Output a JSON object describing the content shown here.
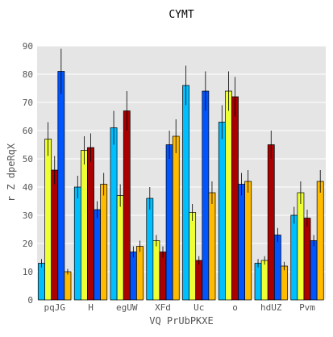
{
  "chart_data": {
    "type": "bar",
    "title": "CYMT",
    "xlabel": "VQ PrUbPKXE",
    "ylabel": "r Z dpeRqX",
    "categories": [
      "pqJG",
      "H",
      "egUW",
      "XFd",
      "Uc",
      "o",
      "hdUZ",
      "Pvm"
    ],
    "ylim": [
      0,
      90
    ],
    "yticks": [
      0,
      10,
      20,
      30,
      40,
      50,
      60,
      70,
      80,
      90
    ],
    "grid": true,
    "series": [
      {
        "color": "#00bfff",
        "values": [
          13,
          40,
          61,
          36,
          76,
          63,
          13,
          30
        ],
        "errors": [
          1.5,
          4,
          6,
          4,
          7,
          6,
          1.5,
          3
        ]
      },
      {
        "color": "#eeff33",
        "values": [
          57,
          53,
          37,
          21,
          31,
          74,
          14,
          38
        ],
        "errors": [
          6,
          5,
          4,
          2,
          3,
          7,
          1.5,
          4
        ]
      },
      {
        "color": "#aa0000",
        "values": [
          46,
          54,
          67,
          17,
          14,
          72,
          55,
          29
        ],
        "errors": [
          5,
          5,
          7,
          2,
          1.5,
          7,
          5,
          3
        ]
      },
      {
        "color": "#0055ff",
        "values": [
          81,
          32,
          17,
          55,
          74,
          41,
          23,
          21
        ],
        "errors": [
          8,
          3,
          2,
          5,
          7,
          4,
          2.5,
          2
        ]
      },
      {
        "color": "#ffbb00",
        "values": [
          10,
          41,
          19,
          58,
          38,
          42,
          12,
          42
        ],
        "errors": [
          1,
          4,
          2,
          6,
          4,
          4,
          1.5,
          4
        ]
      }
    ],
    "colors": {
      "background": "#e5e5e5",
      "grid": "#ffffff",
      "error_bar": "#000000",
      "bar_edge": "#000000"
    }
  }
}
